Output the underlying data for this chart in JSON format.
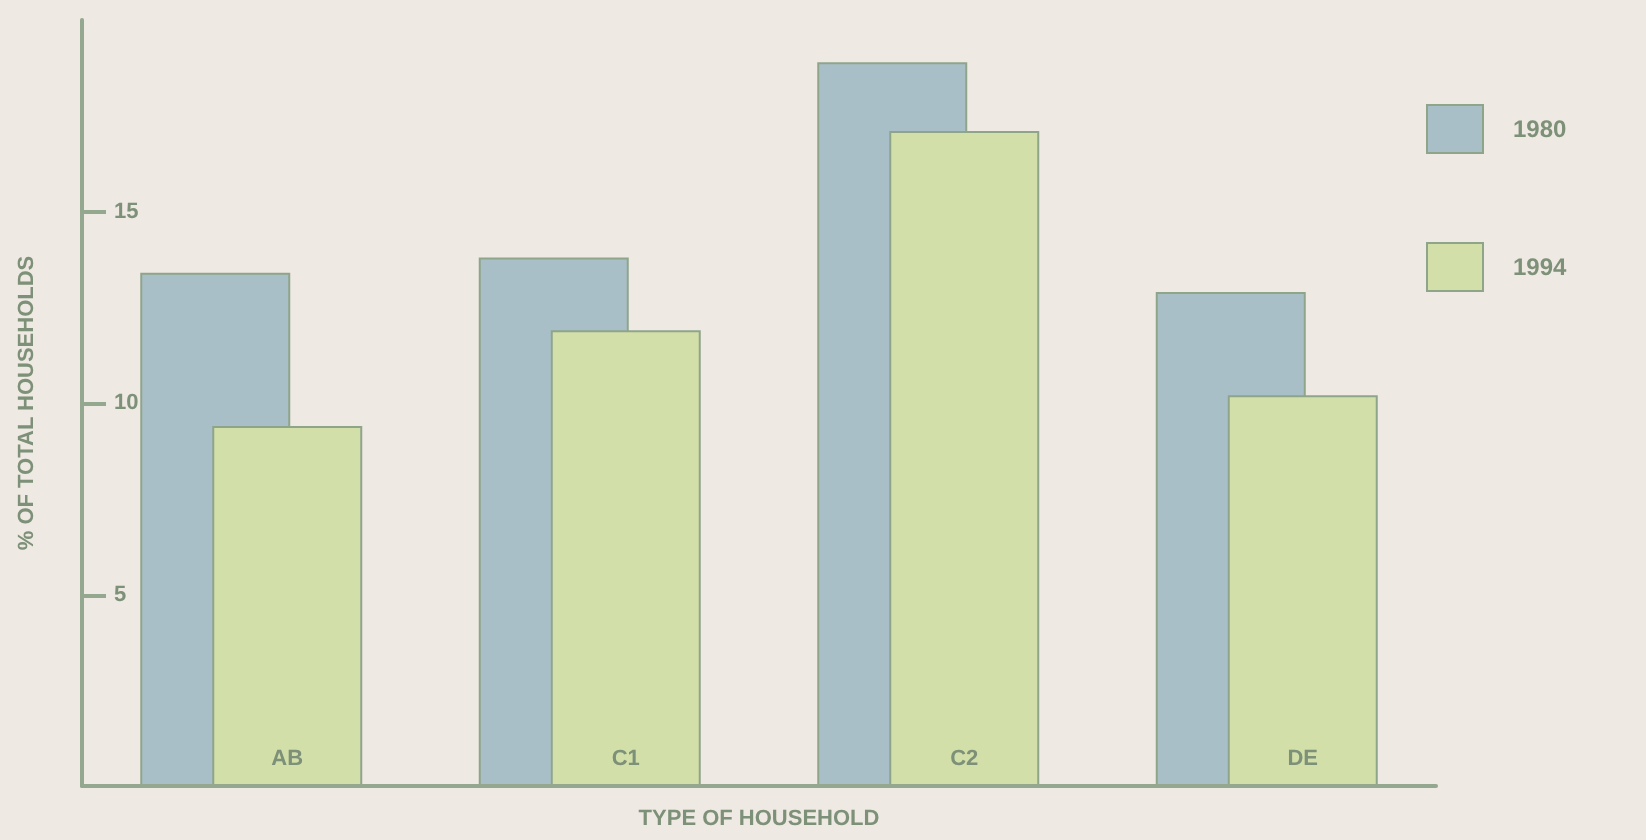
{
  "chart_data": {
    "type": "bar",
    "xlabel": "TYPE OF HOUSEHOLD",
    "ylabel": "% OF TOTAL HOUSEHOLDS",
    "categories": [
      "AB",
      "C1",
      "C2",
      "DE"
    ],
    "series": [
      {
        "name": "1980",
        "color": "#a9bfc8",
        "values": [
          13.4,
          13.8,
          18.9,
          12.9
        ]
      },
      {
        "name": "1994",
        "color": "#d3dfa9",
        "values": [
          9.4,
          11.9,
          17.1,
          10.2
        ]
      }
    ],
    "ylim": [
      0,
      20
    ],
    "yticks": [
      5,
      10,
      15
    ],
    "grid": false,
    "legend": "top right"
  }
}
